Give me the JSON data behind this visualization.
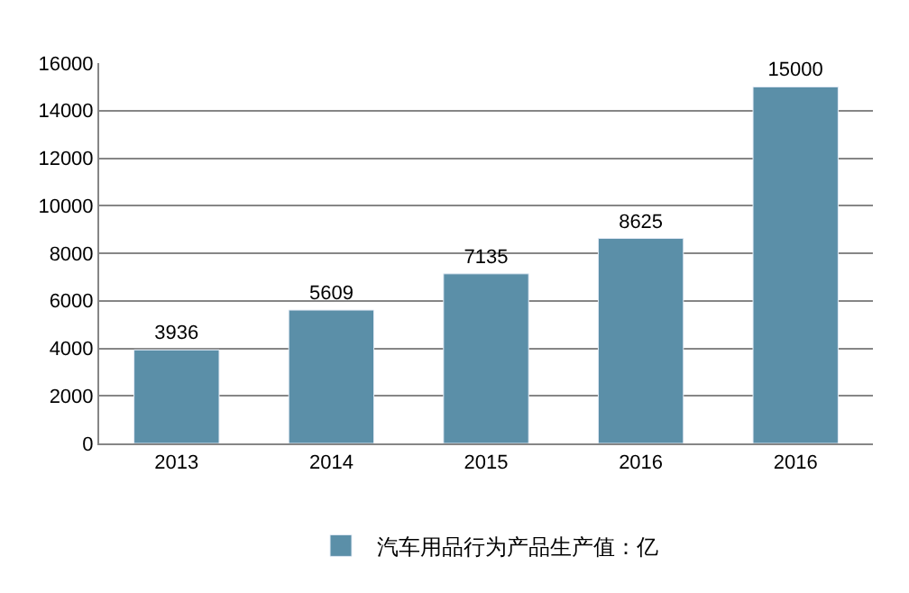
{
  "chart_data": {
    "type": "bar",
    "categories": [
      "2013",
      "2014",
      "2015",
      "2016",
      "2016"
    ],
    "series": [
      {
        "name": "汽车用品行为产品生产值：亿",
        "color": "#5b8fa8",
        "values": [
          3936,
          5609,
          7135,
          8625,
          15000
        ]
      }
    ],
    "ylim": [
      0,
      16000
    ],
    "yticks": [
      0,
      2000,
      4000,
      6000,
      8000,
      10000,
      12000,
      14000,
      16000
    ],
    "grid": "y",
    "legend": "bottom",
    "data_labels": true
  }
}
